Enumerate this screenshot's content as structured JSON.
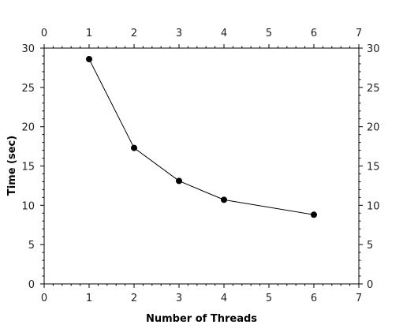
{
  "chart_data": {
    "type": "line",
    "title": "",
    "xlabel": "Number of Threads",
    "ylabel": "Time (sec)",
    "xlim": [
      0,
      7
    ],
    "ylim": [
      0,
      30
    ],
    "x_ticks": [
      0,
      1,
      2,
      3,
      4,
      5,
      6,
      7
    ],
    "y_ticks": [
      0,
      5,
      10,
      15,
      20,
      25,
      30
    ],
    "x_minor_per_major": 5,
    "y_minor_per_major": 5,
    "mirror_axes": true,
    "grid": false,
    "legend": "none",
    "series": [
      {
        "x": [
          1,
          2,
          3,
          4,
          6
        ],
        "values": [
          28.6,
          17.3,
          13.1,
          10.7,
          8.8
        ]
      }
    ],
    "colors": {
      "line": "#000000",
      "marker": "#000000"
    }
  }
}
